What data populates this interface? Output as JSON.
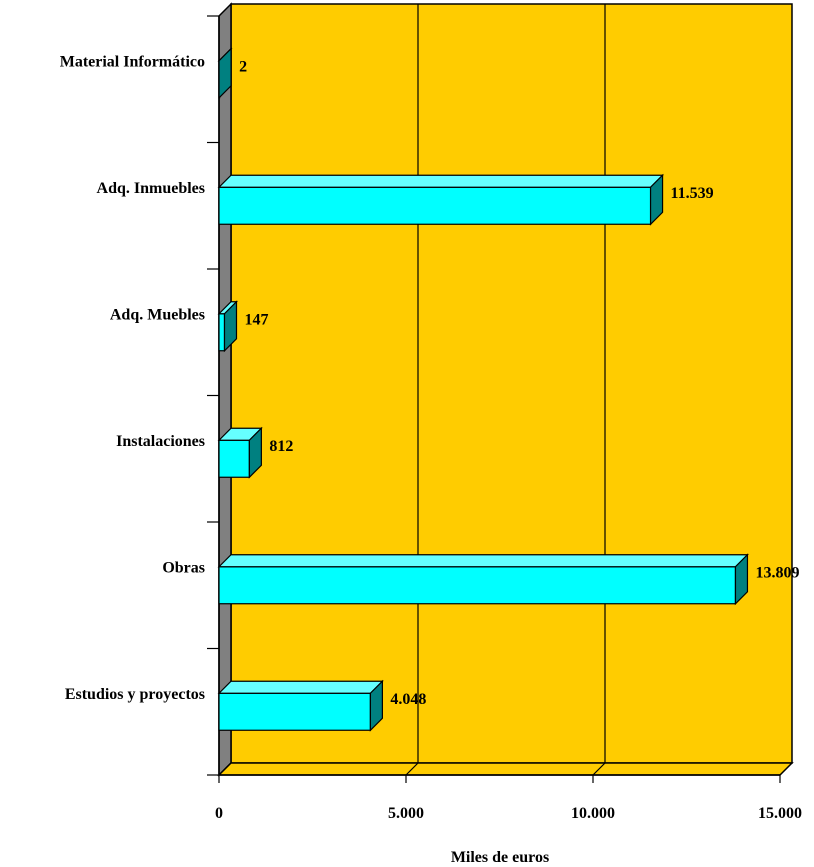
{
  "chart_data": {
    "type": "bar",
    "orientation": "horizontal",
    "three_d": true,
    "categories": [
      "Estudios y proyectos",
      "Obras",
      "Instalaciones",
      "Adq. Muebles",
      "Adq. Inmuebles",
      "Material Informático"
    ],
    "values": [
      4048,
      13809,
      812,
      147,
      11539,
      2
    ],
    "value_labels": [
      "4.048",
      "13.809",
      "812",
      "147",
      "11.539",
      "2"
    ],
    "xlabel": "Miles de euros",
    "ylabel": "",
    "title": "",
    "xlim": [
      0,
      15000
    ],
    "x_ticks": [
      0,
      5000,
      10000,
      15000
    ],
    "x_tick_labels": [
      "0",
      "5.000",
      "10.000",
      "15.000"
    ],
    "grid": "vertical major",
    "legend": "none",
    "colors": {
      "plot_background": "#FFCC00",
      "bar_front": "#00FFFF",
      "bar_top": "#66FFFF",
      "bar_side": "#008080",
      "side_wall": "#808080",
      "grid": "#000000"
    }
  }
}
